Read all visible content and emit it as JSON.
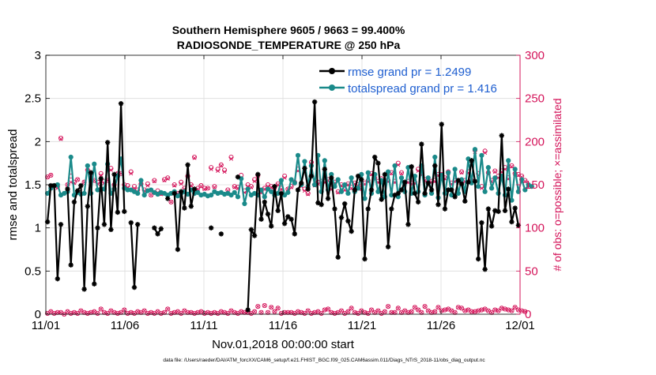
{
  "chart_data": {
    "type": "line",
    "title_line1": "Southern Hemisphere 9605 / 9663 = 99.400%",
    "title_line2": "RADIOSONDE_TEMPERATURE @ 250 hPa",
    "xlabel": "Nov.01,2018 00:00:00 start",
    "ylabel_left": "rmse and totalspread",
    "ylabel_right": "# of obs: o=possible; ×=assimilated",
    "footer": "data file: /Users/raeder/DAI/ATM_forcXX/CAM6_setup/f.e21.FHIST_BGC.f09_025.CAM6assim.011/Diags_NTrS_2018-11/obs_diag_output.nc",
    "x_range": [
      0,
      30
    ],
    "x_ticks": [
      0,
      5,
      10,
      15,
      20,
      25,
      30
    ],
    "x_tick_labels": [
      "11/01",
      "11/06",
      "11/11",
      "11/16",
      "11/21",
      "11/26",
      "12/01"
    ],
    "ylim_left": [
      0,
      3
    ],
    "y_ticks_left": [
      0,
      0.5,
      1,
      1.5,
      2,
      2.5,
      3
    ],
    "y_tick_labels_left": [
      "0",
      "0.5",
      "1",
      "1.5",
      "2",
      "2.5",
      "3"
    ],
    "ylim_right": [
      0,
      300
    ],
    "y_ticks_right": [
      0,
      50,
      100,
      150,
      200,
      250,
      300
    ],
    "y_tick_labels_right": [
      "0",
      "50",
      "100",
      "150",
      "200",
      "250",
      "300"
    ],
    "legend_position": "top-right",
    "colors": {
      "rmse": "#000000",
      "spread": "#1a8a8a",
      "obs": "#d4145a",
      "right_axis": "#d4145a",
      "legend_text": "#1f5fd0"
    },
    "series": [
      {
        "name": "rmse grand pr = 1.2499",
        "values": [
          1.07,
          1.49,
          1.49,
          0.41,
          1.04,
          null,
          1.45,
          0.57,
          1.3,
          1.43,
          1.49,
          0.29,
          1.25,
          1.64,
          0.35,
          1.0,
          1.57,
          1.04,
          1.99,
          0.98,
          1.62,
          1.18,
          2.44,
          1.19,
          null,
          1.06,
          0.31,
          1.04,
          null,
          null,
          null,
          null,
          1.0,
          0.93,
          0.99,
          null,
          1.34,
          null,
          1.4,
          0.75,
          1.42,
          1.23,
          1.73,
          1.25,
          1.45,
          null,
          null,
          null,
          null,
          1.0,
          null,
          null,
          0.93,
          null,
          null,
          null,
          null,
          1.59,
          null,
          null,
          0.05,
          0.98,
          0.91,
          1.62,
          1.1,
          1.3,
          1.16,
          1.02,
          1.48,
          1.2,
          1.4,
          1.05,
          1.13,
          1.1,
          0.93,
          1.44,
          1.52,
          1.69,
          1.45,
          1.6,
          2.46,
          1.29,
          1.27,
          1.68,
          1.34,
          1.58,
          1.22,
          0.66,
          1.12,
          1.28,
          1.08,
          0.96,
          1.44,
          1.6,
          1.56,
          0.64,
          1.22,
          1.44,
          1.82,
          1.75,
          1.33,
          1.62,
          0.78,
          1.22,
          1.38,
          1.4,
          1.44,
          1.53,
          1.04,
          1.71,
          1.4,
          1.3,
          1.97,
          1.4,
          1.52,
          1.44,
          1.72,
          1.27,
          2.2,
          1.22,
          1.44,
          1.44,
          1.36,
          1.55,
          1.51,
          1.31,
          1.53,
          1.78,
          1.54,
          0.64,
          1.06,
          0.52,
          1.22,
          1.02,
          1.2,
          1.19,
          2.07,
          1.2,
          1.45,
          1.07,
          1.23,
          1.03
        ]
      },
      {
        "name": "totalspread grand pr = 1.416",
        "values": [
          1.4,
          1.46,
          1.49,
          1.5,
          1.38,
          1.4,
          1.42,
          1.82,
          1.38,
          1.41,
          1.39,
          1.4,
          1.72,
          1.4,
          1.74,
          1.44,
          1.45,
          1.45,
          1.74,
          1.4,
          1.45,
          1.6,
          1.8,
          1.46,
          1.44,
          1.44,
          1.42,
          1.4,
          1.55,
          1.38,
          1.43,
          1.44,
          1.41,
          1.39,
          1.41,
          1.4,
          1.38,
          1.4,
          1.42,
          1.37,
          1.4,
          1.42,
          1.39,
          1.44,
          1.4,
          1.41,
          1.38,
          1.39,
          1.37,
          1.38,
          1.42,
          1.4,
          1.41,
          1.39,
          1.4,
          1.38,
          1.41,
          1.36,
          1.57,
          1.28,
          1.45,
          1.38,
          1.4,
          1.38,
          1.44,
          1.36,
          1.45,
          1.42,
          1.38,
          1.4,
          1.55,
          1.38,
          1.41,
          1.56,
          1.52,
          1.84,
          1.5,
          1.77,
          1.48,
          1.72,
          1.5,
          1.84,
          1.42,
          1.78,
          1.44,
          1.62,
          1.48,
          1.56,
          1.42,
          1.5,
          1.4,
          1.58,
          1.42,
          1.46,
          1.62,
          1.34,
          1.64,
          1.4,
          1.62,
          1.42,
          1.55,
          1.36,
          1.65,
          1.38,
          1.72,
          1.36,
          1.58,
          1.42,
          1.7,
          1.4,
          1.6,
          1.42,
          1.72,
          1.38,
          1.58,
          1.4,
          1.82,
          1.35,
          1.61,
          1.4,
          1.64,
          1.38,
          1.68,
          1.4,
          1.56,
          1.42,
          1.8,
          1.52,
          1.91,
          1.48,
          1.84,
          1.42,
          1.7,
          1.46,
          1.58,
          1.4,
          1.6,
          1.38,
          1.78,
          1.32,
          1.68,
          1.42,
          1.56,
          1.44,
          1.5,
          1.48
        ]
      }
    ],
    "obs_possible": [
      159,
      161,
      null,
      148,
      204,
      null,
      150,
      160,
      153,
      156,
      null,
      153,
      167,
      162,
      155,
      153,
      163,
      154,
      155,
      169,
      150,
      163,
      163,
      150,
      149,
      165,
      148,
      144,
      151,
      144,
      151,
      138,
      155,
      143,
      140,
      156,
      158,
      130,
      150,
      140,
      153,
      146,
      160,
      150,
      182,
      146,
      149,
      146,
      146,
      170,
      148,
      168,
      173,
      167,
      144,
      182,
      148,
      147,
      161,
      143,
      150,
      148,
      156,
      161,
      142,
      146,
      150,
      148,
      147,
      151,
      146,
      160,
      145,
      148,
      153,
      168,
      150,
      145,
      140,
      176,
      150,
      153,
      154,
      154,
      156,
      146,
      153,
      142,
      150,
      145,
      151,
      147,
      152,
      150,
      146,
      152,
      155,
      163,
      158,
      154,
      157,
      155,
      155,
      164,
      154,
      175,
      164,
      152,
      154,
      152,
      153,
      168,
      163,
      156,
      153,
      154,
      155,
      162,
      162,
      158,
      165,
      152,
      155,
      155,
      165,
      155,
      165,
      155,
      190,
      163,
      148,
      189,
      164,
      155,
      166,
      160,
      166,
      170,
      158,
      172,
      163,
      162,
      160,
      155
    ],
    "obs_assimilated": [
      159,
      161,
      null,
      146,
      203,
      null,
      150,
      153,
      152,
      156,
      null,
      153,
      166,
      160,
      155,
      151,
      161,
      152,
      155,
      167,
      149,
      163,
      163,
      148,
      147,
      163,
      146,
      142,
      150,
      143,
      149,
      138,
      154,
      141,
      139,
      155,
      157,
      130,
      149,
      140,
      151,
      145,
      159,
      149,
      181,
      145,
      148,
      145,
      146,
      168,
      147,
      166,
      172,
      165,
      143,
      180,
      147,
      146,
      158,
      141,
      148,
      147,
      154,
      160,
      141,
      145,
      148,
      147,
      146,
      150,
      145,
      158,
      145,
      147,
      152,
      166,
      148,
      143,
      139,
      174,
      149,
      151,
      153,
      153,
      155,
      145,
      152,
      141,
      149,
      144,
      150,
      146,
      151,
      149,
      145,
      151,
      154,
      162,
      156,
      153,
      155,
      154,
      154,
      163,
      153,
      173,
      163,
      151,
      153,
      151,
      152,
      166,
      162,
      155,
      152,
      153,
      154,
      161,
      161,
      157,
      163,
      151,
      154,
      154,
      164,
      154,
      164,
      154,
      188,
      161,
      146,
      187,
      162,
      154,
      165,
      158,
      165,
      168,
      157,
      171,
      162,
      161,
      159,
      154
    ],
    "obs_low_possible": [
      1,
      3,
      1,
      2,
      2,
      0,
      3,
      1,
      2,
      1,
      4,
      2,
      1,
      2,
      3,
      1,
      6,
      2,
      1,
      4,
      2,
      1,
      2,
      5,
      1,
      2,
      1,
      3,
      2,
      4,
      1,
      2,
      1,
      3,
      1,
      2,
      6,
      1,
      2,
      3,
      1,
      4,
      2,
      2,
      1,
      2,
      3,
      1,
      2,
      1,
      2,
      1,
      3,
      2,
      1,
      4,
      2,
      1,
      3,
      2,
      2,
      1,
      3,
      9,
      2,
      10,
      2,
      8,
      3,
      7,
      1,
      2,
      2,
      2,
      1,
      3,
      2,
      1,
      4,
      1,
      2,
      3,
      1,
      5,
      6,
      2,
      1,
      2,
      4,
      1,
      3,
      7,
      2,
      1,
      4,
      2,
      1,
      5,
      2,
      4,
      1,
      3,
      9,
      2,
      2,
      7,
      2,
      4,
      2,
      3,
      8,
      5,
      2,
      9,
      4,
      2,
      3,
      8,
      4,
      5,
      6,
      4,
      2,
      8,
      7,
      4,
      5,
      3,
      3,
      4,
      5,
      6,
      4,
      2,
      5,
      4,
      7,
      6,
      5,
      4,
      8,
      5,
      4,
      3
    ],
    "obs_low_assimilated": [
      1,
      3,
      1,
      2,
      2,
      0,
      3,
      1,
      2,
      1,
      4,
      2,
      1,
      2,
      3,
      1,
      6,
      2,
      1,
      4,
      2,
      1,
      2,
      5,
      1,
      2,
      1,
      3,
      2,
      4,
      1,
      2,
      1,
      3,
      1,
      2,
      6,
      1,
      2,
      3,
      1,
      4,
      2,
      2,
      1,
      2,
      3,
      1,
      2,
      1,
      2,
      1,
      3,
      2,
      1,
      4,
      2,
      1,
      3,
      2,
      2,
      1,
      3,
      9,
      2,
      10,
      2,
      8,
      3,
      7,
      1,
      2,
      2,
      2,
      1,
      3,
      2,
      1,
      4,
      1,
      2,
      3,
      1,
      5,
      6,
      2,
      1,
      2,
      4,
      1,
      3,
      7,
      2,
      1,
      4,
      2,
      1,
      5,
      2,
      4,
      1,
      3,
      9,
      2,
      2,
      7,
      2,
      4,
      2,
      3,
      8,
      5,
      2,
      9,
      4,
      2,
      3,
      8,
      4,
      5,
      6,
      4,
      2,
      8,
      7,
      4,
      5,
      3,
      3,
      4,
      5,
      6,
      4,
      2,
      5,
      4,
      7,
      6,
      5,
      4,
      8,
      5,
      4,
      3
    ]
  }
}
